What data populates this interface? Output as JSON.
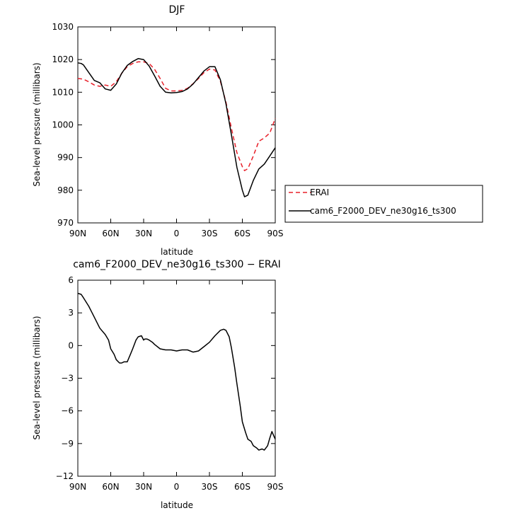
{
  "chart_data": [
    {
      "type": "line",
      "title": "DJF",
      "xlabel": "latitude",
      "ylabel": "Sea-level pressure (millibars)",
      "xlim": [
        90,
        -90
      ],
      "ylim": [
        970,
        1030
      ],
      "xticks": [
        90,
        60,
        30,
        0,
        -30,
        -60,
        -90
      ],
      "xticklabels": [
        "90N",
        "60N",
        "30N",
        "0",
        "30S",
        "60S",
        "90S"
      ],
      "yticks": [
        970,
        980,
        990,
        1000,
        1010,
        1020,
        1030
      ],
      "yticklabels": [
        "970",
        "980",
        "990",
        "1000",
        "1010",
        "1020",
        "1030"
      ],
      "grid": false,
      "legend_position": "right",
      "series": [
        {
          "name": "ERAI",
          "color": "#e8202a",
          "dash": "dashed",
          "x": [
            90,
            85,
            80,
            75,
            70,
            65,
            60,
            55,
            50,
            45,
            40,
            35,
            30,
            25,
            20,
            15,
            10,
            5,
            0,
            -5,
            -10,
            -15,
            -20,
            -25,
            -30,
            -35,
            -40,
            -45,
            -50,
            -55,
            -60,
            -62,
            -65,
            -70,
            -75,
            -80,
            -85,
            -90
          ],
          "y": [
            1014.2,
            1014.0,
            1013.2,
            1012.2,
            1011.8,
            1012.2,
            1011.8,
            1013.2,
            1015.8,
            1017.8,
            1018.8,
            1019.3,
            1019.3,
            1018.8,
            1017.0,
            1014.2,
            1011.2,
            1010.4,
            1010.4,
            1010.6,
            1011.2,
            1012.6,
            1014.2,
            1016.0,
            1017.1,
            1016.8,
            1013.3,
            1007.0,
            999.0,
            991.5,
            987.2,
            986.0,
            986.6,
            990.5,
            995.0,
            996.0,
            997.5,
            1002.0
          ]
        },
        {
          "name": "cam6_F2000_DEV_ne30g16_ts300",
          "color": "#000000",
          "dash": "solid",
          "x": [
            90,
            87,
            85,
            80,
            75,
            70,
            65,
            60,
            55,
            50,
            45,
            40,
            35,
            30,
            25,
            20,
            15,
            10,
            5,
            0,
            -5,
            -10,
            -15,
            -20,
            -25,
            -30,
            -35,
            -40,
            -45,
            -50,
            -55,
            -60,
            -62,
            -65,
            -70,
            -75,
            -80,
            -85,
            -90
          ],
          "y": [
            1019.0,
            1018.8,
            1018.4,
            1016.0,
            1013.6,
            1012.9,
            1011.0,
            1010.6,
            1012.5,
            1015.8,
            1018.2,
            1019.4,
            1020.3,
            1020.0,
            1018.0,
            1015.0,
            1011.8,
            1010.0,
            1009.8,
            1009.9,
            1010.2,
            1011.0,
            1012.5,
            1014.5,
            1016.5,
            1017.8,
            1017.8,
            1013.8,
            1006.5,
            997.0,
            987.0,
            980.0,
            978.0,
            978.5,
            983.0,
            986.5,
            988.0,
            990.5,
            993.0
          ]
        }
      ]
    },
    {
      "type": "line",
      "title": "cam6_F2000_DEV_ne30g16_ts300 − ERAI",
      "xlabel": "latitude",
      "ylabel": "Sea-level pressure (millibars)",
      "xlim": [
        90,
        -90
      ],
      "ylim": [
        -12,
        6
      ],
      "xticks": [
        90,
        60,
        30,
        0,
        -30,
        -60,
        -90
      ],
      "xticklabels": [
        "90N",
        "60N",
        "30N",
        "0",
        "30S",
        "60S",
        "90S"
      ],
      "yticks": [
        -12,
        -9,
        -6,
        -3,
        0,
        3,
        6
      ],
      "yticklabels": [
        "−12",
        "−9",
        "−6",
        "−3",
        "0",
        "3",
        "6"
      ],
      "grid": false,
      "series": [
        {
          "color": "#000000",
          "dash": "solid",
          "x": [
            90,
            87,
            85,
            80,
            75,
            70,
            65,
            62,
            60,
            57,
            55,
            52,
            50,
            48,
            45,
            42,
            40,
            37,
            35,
            32,
            30,
            29,
            27,
            25,
            22,
            20,
            15,
            10,
            5,
            0,
            -5,
            -10,
            -15,
            -20,
            -25,
            -30,
            -35,
            -40,
            -43,
            -45,
            -48,
            -50,
            -53,
            -55,
            -58,
            -60,
            -63,
            -65,
            -68,
            -70,
            -73,
            -75,
            -78,
            -80,
            -83,
            -85,
            -87,
            -90
          ],
          "y": [
            4.8,
            4.7,
            4.4,
            3.6,
            2.6,
            1.6,
            1.0,
            0.5,
            -0.3,
            -0.8,
            -1.3,
            -1.6,
            -1.6,
            -1.5,
            -1.5,
            -0.8,
            -0.3,
            0.5,
            0.8,
            0.9,
            0.5,
            0.6,
            0.6,
            0.5,
            0.3,
            0.1,
            -0.3,
            -0.4,
            -0.4,
            -0.5,
            -0.4,
            -0.4,
            -0.6,
            -0.5,
            -0.1,
            0.3,
            0.9,
            1.4,
            1.5,
            1.4,
            0.8,
            -0.2,
            -2.0,
            -3.5,
            -5.5,
            -7.0,
            -8.0,
            -8.6,
            -8.8,
            -9.2,
            -9.4,
            -9.6,
            -9.5,
            -9.6,
            -9.2,
            -8.5,
            -7.9,
            -8.6
          ]
        }
      ]
    }
  ]
}
